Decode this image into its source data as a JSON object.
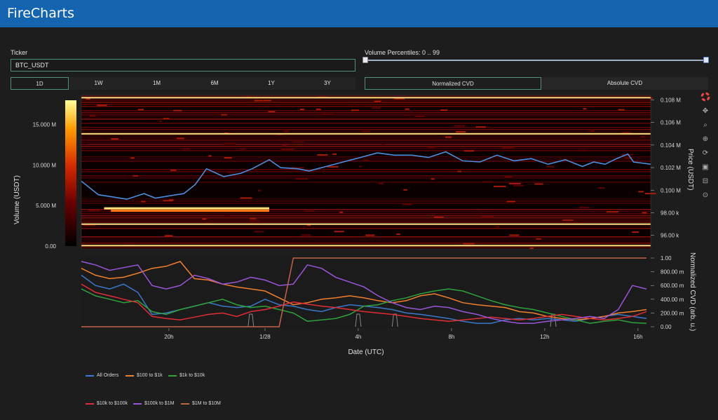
{
  "app": {
    "title": "FireCharts"
  },
  "ticker": {
    "label": "Ticker",
    "value": "BTC_USDT"
  },
  "percentiles": {
    "label": "Volume Percentiles: 0 .. 99",
    "low": 0,
    "high": 99
  },
  "ranges": [
    {
      "label": "1D",
      "active": true
    },
    {
      "label": "1W",
      "active": false
    },
    {
      "label": "1M",
      "active": false
    },
    {
      "label": "6M",
      "active": false
    },
    {
      "label": "1Y",
      "active": false
    },
    {
      "label": "3Y",
      "active": false
    }
  ],
  "cvd_modes": [
    {
      "label": "Normalized CVD",
      "active": true
    },
    {
      "label": "Absolute CVD",
      "active": false
    }
  ],
  "modebar_icons": [
    "plotly-logo-icon",
    "pan-icon",
    "zoom-icon",
    "select-icon",
    "reset-icon",
    "download-icon",
    "tag-icon",
    "spike-icon"
  ],
  "colors": {
    "header": "#1564b0",
    "panel": "#1d1d1d",
    "accent": "#4f8f80"
  },
  "chart_data": [
    {
      "type": "heatmap",
      "name": "order-book-heatmap",
      "ylabel_left": "Volume (USDT)",
      "ylabel_right": "Price (USDT)",
      "colorbar_ticks": [
        "0.00",
        "5.000 M",
        "10.000 M",
        "15.000 M"
      ],
      "colorbar_range": [
        0,
        18000000
      ],
      "price_ticks": [
        "96.00 k",
        "98.00 k",
        "0.100 M",
        "0.102 M",
        "0.104 M",
        "0.106 M",
        "0.108 M"
      ],
      "price_values": [
        96000,
        98000,
        100000,
        102000,
        104000,
        106000,
        108000
      ],
      "ylim": [
        94800,
        108400
      ],
      "strong_levels": [
        108200,
        105000,
        97000,
        95100
      ],
      "bright_wall": {
        "price": 98300,
        "from": 0.04,
        "to": 0.33
      },
      "price_line": {
        "color": "#4a8fe0",
        "x": [
          0,
          0.03,
          0.08,
          0.11,
          0.13,
          0.18,
          0.2,
          0.22,
          0.25,
          0.28,
          0.3,
          0.33,
          0.35,
          0.38,
          0.4,
          0.43,
          0.46,
          0.49,
          0.52,
          0.55,
          0.58,
          0.61,
          0.64,
          0.67,
          0.7,
          0.73,
          0.76,
          0.79,
          0.82,
          0.85,
          0.88,
          0.9,
          0.92,
          0.94,
          0.96,
          0.97,
          1.0
        ],
        "y": [
          100800,
          99600,
          99200,
          99700,
          99300,
          99700,
          100500,
          101900,
          101200,
          101500,
          101900,
          102700,
          102000,
          101900,
          101700,
          102100,
          102500,
          102900,
          103300,
          103100,
          103100,
          102900,
          103400,
          102600,
          102500,
          103100,
          102600,
          102800,
          102300,
          102700,
          102100,
          102500,
          102300,
          102800,
          103200,
          102500,
          102300
        ]
      }
    },
    {
      "type": "line",
      "name": "normalized-cvd",
      "xlabel": "Date (UTC)",
      "ylabel": "Normalized CVD (arb. u.)",
      "x_ticks": [
        "20h",
        "1/28",
        "4h",
        "8h",
        "12h",
        "16h"
      ],
      "x_tick_positions": [
        0.155,
        0.325,
        0.49,
        0.655,
        0.82,
        0.985
      ],
      "y_ticks": [
        "0.00",
        "200.00 m",
        "400.00 m",
        "600.00 m",
        "800.00 m",
        "1.00"
      ],
      "ylim": [
        0,
        1
      ],
      "series": [
        {
          "name": "All Orders",
          "color": "#3b78c9",
          "values": [
            0.75,
            0.6,
            0.55,
            0.62,
            0.5,
            0.18,
            0.2,
            0.25,
            0.3,
            0.35,
            0.3,
            0.28,
            0.3,
            0.4,
            0.32,
            0.3,
            0.25,
            0.22,
            0.28,
            0.32,
            0.3,
            0.28,
            0.25,
            0.2,
            0.18,
            0.15,
            0.12,
            0.08,
            0.05,
            0.05,
            0.1,
            0.12,
            0.1,
            0.12,
            0.1,
            0.08,
            0.12,
            0.15,
            0.18,
            0.15,
            0.12
          ]
        },
        {
          "name": "$100 to $1k",
          "color": "#f07f2c",
          "values": [
            0.85,
            0.75,
            0.7,
            0.72,
            0.78,
            0.85,
            0.88,
            0.95,
            0.7,
            0.68,
            0.62,
            0.58,
            0.55,
            0.52,
            0.42,
            0.32,
            0.35,
            0.4,
            0.42,
            0.45,
            0.42,
            0.38,
            0.35,
            0.38,
            0.45,
            0.48,
            0.42,
            0.35,
            0.32,
            0.3,
            0.28,
            0.22,
            0.2,
            0.15,
            0.12,
            0.1,
            0.12,
            0.15,
            0.2,
            0.22,
            0.25
          ]
        },
        {
          "name": "$1k to $10k",
          "color": "#2ea33c",
          "values": [
            0.55,
            0.45,
            0.4,
            0.35,
            0.38,
            0.22,
            0.18,
            0.25,
            0.3,
            0.35,
            0.4,
            0.32,
            0.28,
            0.3,
            0.25,
            0.2,
            0.08,
            0.1,
            0.12,
            0.18,
            0.3,
            0.32,
            0.38,
            0.42,
            0.48,
            0.52,
            0.55,
            0.52,
            0.45,
            0.38,
            0.32,
            0.28,
            0.25,
            0.2,
            0.15,
            0.1,
            0.05,
            0.08,
            0.1,
            0.06,
            0.05
          ]
        },
        {
          "name": "$10k to $100k",
          "color": "#e02e34",
          "values": [
            0.62,
            0.5,
            0.45,
            0.4,
            0.35,
            0.15,
            0.12,
            0.1,
            0.14,
            0.18,
            0.2,
            0.15,
            0.22,
            0.25,
            0.3,
            0.36,
            0.33,
            0.3,
            0.28,
            0.25,
            0.22,
            0.2,
            0.18,
            0.15,
            0.12,
            0.1,
            0.08,
            0.1,
            0.12,
            0.14,
            0.12,
            0.1,
            0.12,
            0.15,
            0.18,
            0.15,
            0.12,
            0.1,
            0.12,
            0.15,
            0.22
          ]
        },
        {
          "name": "$100k to $1M",
          "color": "#9a55d8",
          "values": [
            0.95,
            0.9,
            0.82,
            0.86,
            0.9,
            0.6,
            0.55,
            0.6,
            0.75,
            0.7,
            0.62,
            0.65,
            0.72,
            0.68,
            0.6,
            0.62,
            0.9,
            0.85,
            0.72,
            0.65,
            0.58,
            0.45,
            0.35,
            0.28,
            0.25,
            0.3,
            0.28,
            0.22,
            0.18,
            0.12,
            0.08,
            0.05,
            0.05,
            0.08,
            0.1,
            0.12,
            0.15,
            0.12,
            0.25,
            0.6,
            0.55
          ]
        },
        {
          "name": "$1M to $10M",
          "color": "#c4624a",
          "values": [
            0.0,
            0.0,
            0.0,
            0.0,
            0.0,
            0.0,
            0.0,
            0.0,
            0.0,
            0.0,
            0.0,
            0.0,
            0.0,
            0.0,
            0.0,
            1.0,
            1.0,
            1.0,
            1.0,
            1.0,
            1.0,
            1.0,
            1.0,
            1.0,
            1.0,
            1.0,
            1.0,
            1.0,
            1.0,
            1.0,
            1.0,
            1.0,
            1.0,
            1.0,
            1.0,
            1.0,
            1.0,
            1.0,
            1.0,
            1.0,
            1.0
          ]
        }
      ]
    }
  ]
}
